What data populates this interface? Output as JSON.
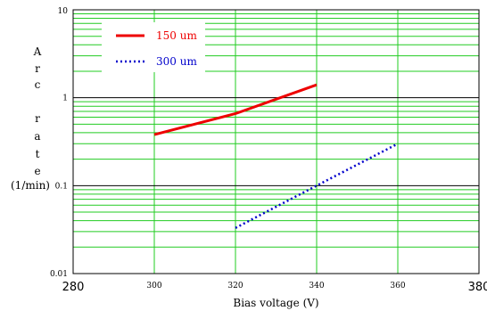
{
  "chart_data": {
    "type": "line",
    "title": "",
    "xlabel": "Bias voltage (V)",
    "ylabel_letters": [
      "A",
      "r",
      "c",
      "r",
      "a",
      "t",
      "e",
      "(1/min)"
    ],
    "xlim": [
      280,
      380
    ],
    "ylim": [
      0.01,
      10
    ],
    "y_scale": "log",
    "grid": true,
    "x_ticks": [
      {
        "value": 280,
        "label": "280"
      },
      {
        "value": 300,
        "label": "300"
      },
      {
        "value": 320,
        "label": "320"
      },
      {
        "value": 340,
        "label": "340"
      },
      {
        "value": 360,
        "label": "360"
      },
      {
        "value": 380,
        "label": "380"
      }
    ],
    "y_ticks": [
      {
        "value": 0.01,
        "label": "0.01"
      },
      {
        "value": 0.1,
        "label": "0.1"
      },
      {
        "value": 1,
        "label": "1"
      },
      {
        "value": 10,
        "label": "10"
      }
    ],
    "legend_position": "top-left",
    "series": [
      {
        "name": "150 um",
        "color": "#ee0000",
        "style": "solid",
        "x": [
          300,
          320,
          340
        ],
        "y": [
          0.38,
          0.66,
          1.4
        ]
      },
      {
        "name": "300 um",
        "color": "#0000cc",
        "style": "dotted",
        "x": [
          320,
          340,
          360
        ],
        "y": [
          0.033,
          0.1,
          0.3
        ]
      }
    ],
    "colors": {
      "minor_grid": "#22cc22",
      "major_grid": "#000000",
      "frame": "#000000"
    }
  }
}
